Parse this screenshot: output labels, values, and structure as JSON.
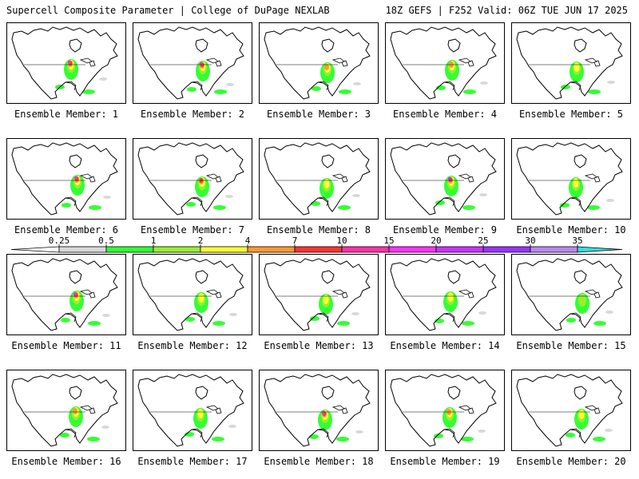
{
  "header": {
    "left": "Supercell Composite Parameter | College of DuPage NEXLAB",
    "right": "18Z GEFS | F252 Valid: 06Z TUE JUN 17 2025"
  },
  "legend": {
    "ticks": [
      "0.25",
      "0.5",
      "1",
      "2",
      "4",
      "7",
      "10",
      "15",
      "20",
      "25",
      "30",
      "35"
    ],
    "colors": [
      "#d8d8d8",
      "#33ff33",
      "#99ee33",
      "#ffff33",
      "#ff9933",
      "#ff3333",
      "#ff33aa",
      "#ff33ff",
      "#cc33ff",
      "#9933ff",
      "#bb88ee",
      "#33dddd"
    ]
  },
  "panels": [
    {
      "label": "Ensemble Member: 1",
      "max": 10
    },
    {
      "label": "Ensemble Member: 2",
      "max": 10
    },
    {
      "label": "Ensemble Member: 3",
      "max": 4
    },
    {
      "label": "Ensemble Member: 4",
      "max": 4
    },
    {
      "label": "Ensemble Member: 5",
      "max": 2
    },
    {
      "label": "Ensemble Member: 6",
      "max": 10
    },
    {
      "label": "Ensemble Member: 7",
      "max": 7
    },
    {
      "label": "Ensemble Member: 8",
      "max": 2
    },
    {
      "label": "Ensemble Member: 9",
      "max": 25
    },
    {
      "label": "Ensemble Member: 10",
      "max": 2
    },
    {
      "label": "Ensemble Member: 11",
      "max": 10
    },
    {
      "label": "Ensemble Member: 12",
      "max": 2
    },
    {
      "label": "Ensemble Member: 13",
      "max": 2
    },
    {
      "label": "Ensemble Member: 14",
      "max": 2
    },
    {
      "label": "Ensemble Member: 15",
      "max": 1
    },
    {
      "label": "Ensemble Member: 16",
      "max": 4
    },
    {
      "label": "Ensemble Member: 17",
      "max": 2
    },
    {
      "label": "Ensemble Member: 18",
      "max": 10
    },
    {
      "label": "Ensemble Member: 19",
      "max": 4
    },
    {
      "label": "Ensemble Member: 20",
      "max": 2
    }
  ]
}
